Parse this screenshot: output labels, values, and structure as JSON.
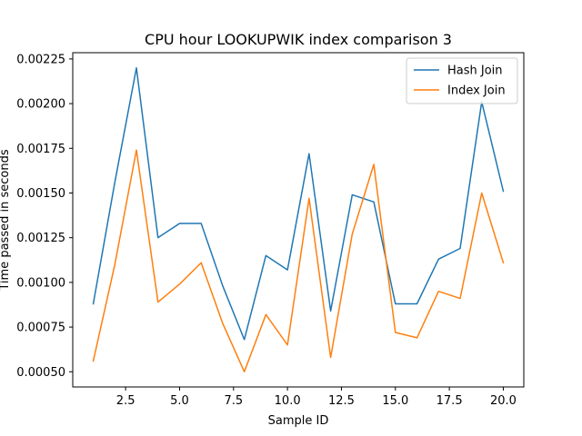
{
  "chart_data": {
    "type": "line",
    "title": "CPU hour LOOKUPWIK index comparison 3",
    "xlabel": "Sample ID",
    "ylabel": "Time passed in seconds",
    "xlim": [
      0.05,
      20.95
    ],
    "ylim": [
      0.000415,
      0.002285
    ],
    "xticks": [
      2.5,
      5.0,
      7.5,
      10.0,
      12.5,
      15.0,
      17.5,
      20.0
    ],
    "xtick_labels": [
      "2.5",
      "5.0",
      "7.5",
      "10.0",
      "12.5",
      "15.0",
      "17.5",
      "20.0"
    ],
    "yticks": [
      0.0005,
      0.00075,
      0.001,
      0.00125,
      0.0015,
      0.00175,
      0.002,
      0.00225
    ],
    "ytick_labels": [
      "0.00050",
      "0.00075",
      "0.00100",
      "0.00125",
      "0.00150",
      "0.00175",
      "0.00200",
      "0.00225"
    ],
    "grid": false,
    "legend_position": "top-right",
    "x": [
      1,
      2,
      3,
      4,
      5,
      6,
      7,
      8,
      9,
      10,
      11,
      12,
      13,
      14,
      15,
      16,
      17,
      18,
      19,
      20
    ],
    "series": [
      {
        "name": "Hash Join",
        "color": "#1f77b4",
        "values": [
          0.00088,
          0.00156,
          0.0022,
          0.00125,
          0.00133,
          0.00133,
          0.00098,
          0.00068,
          0.00115,
          0.00107,
          0.00172,
          0.00084,
          0.00149,
          0.00145,
          0.00088,
          0.00088,
          0.00113,
          0.00119,
          0.00201,
          0.00151
        ]
      },
      {
        "name": "Index Join",
        "color": "#ff7f0e",
        "values": [
          0.00056,
          0.0011,
          0.00174,
          0.00089,
          0.00099,
          0.00111,
          0.00077,
          0.0005,
          0.00082,
          0.00065,
          0.00147,
          0.00058,
          0.00127,
          0.00166,
          0.00072,
          0.00069,
          0.00095,
          0.00091,
          0.0015,
          0.00111
        ]
      }
    ]
  }
}
